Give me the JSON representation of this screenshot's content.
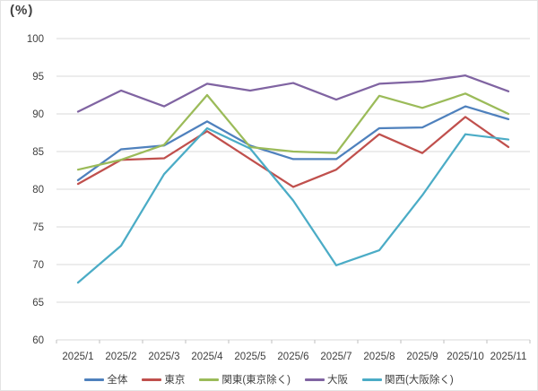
{
  "chart_data": {
    "type": "line",
    "title": "(%)",
    "x_labels": [
      "2025/1",
      "2025/2",
      "2025/3",
      "2025/4",
      "2025/5",
      "2025/6",
      "2025/7",
      "2025/8",
      "2025/9",
      "2025/10",
      "2025/11"
    ],
    "ylim": [
      60,
      100
    ],
    "ytick_step": 5,
    "ytick_labels": [
      "60",
      "65",
      "70",
      "75",
      "80",
      "85",
      "90",
      "95",
      "100"
    ],
    "grid": true,
    "legend_position": "bottom",
    "grid_color": "#d9d9d9",
    "axis_color": "#bfbfbf",
    "text_color": "#404040",
    "series": [
      {
        "name": "全体",
        "color": "#4F81BD",
        "values": [
          81.2,
          85.3,
          85.8,
          89.0,
          85.8,
          84.0,
          84.0,
          88.1,
          88.2,
          91.0,
          89.3
        ]
      },
      {
        "name": "東京",
        "color": "#C0504D",
        "values": [
          80.7,
          83.9,
          84.1,
          87.7,
          84.0,
          80.3,
          82.6,
          87.3,
          84.8,
          89.6,
          85.6
        ]
      },
      {
        "name": "関東(東京除く)",
        "color": "#9BBB59",
        "values": [
          82.6,
          83.9,
          85.9,
          92.5,
          85.6,
          85.0,
          84.8,
          92.4,
          90.8,
          92.7,
          90.0
        ]
      },
      {
        "name": "大阪",
        "color": "#8064A2",
        "values": [
          90.3,
          93.1,
          91.0,
          94.0,
          93.1,
          94.1,
          91.9,
          94.0,
          94.3,
          95.1,
          93.0
        ]
      },
      {
        "name": "関西(大阪除く)",
        "color": "#4BACC6",
        "values": [
          67.6,
          72.5,
          82.0,
          88.1,
          85.4,
          78.5,
          69.9,
          71.9,
          79.2,
          87.3,
          86.6
        ]
      }
    ]
  }
}
